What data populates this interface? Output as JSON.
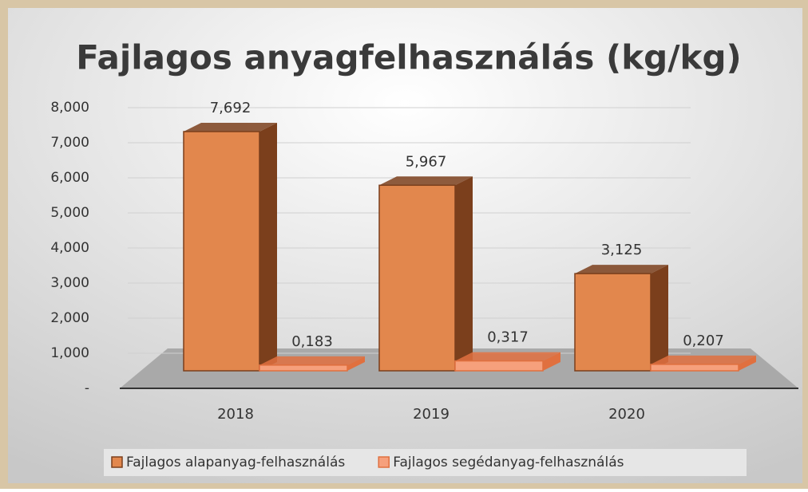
{
  "chart_data": {
    "type": "bar",
    "title": "Fajlagos anyagfelhasználás (kg/kg)",
    "categories": [
      "2018",
      "2019",
      "2020"
    ],
    "series": [
      {
        "name": "Fajlagos alapanyag-felhasználás",
        "color": "#e2874d",
        "values": [
          7.692,
          5.967,
          3.125
        ],
        "value_labels": [
          "7,692",
          "5,967",
          "3,125"
        ]
      },
      {
        "name": "Fajlagos segédanyag-felhasználás",
        "color": "#f6a07c",
        "values": [
          0.183,
          0.317,
          0.207
        ],
        "value_labels": [
          "0,183",
          "0,317",
          "0,207"
        ]
      }
    ],
    "ylim": [
      0,
      8
    ],
    "yticks": [
      {
        "value": 0,
        "label": "-"
      },
      {
        "value": 1,
        "label": "1,000"
      },
      {
        "value": 2,
        "label": "2,000"
      },
      {
        "value": 3,
        "label": "3,000"
      },
      {
        "value": 4,
        "label": "4,000"
      },
      {
        "value": 5,
        "label": "5,000"
      },
      {
        "value": 6,
        "label": "6,000"
      },
      {
        "value": 7,
        "label": "7,000"
      },
      {
        "value": 8,
        "label": "8,000"
      }
    ],
    "grid": true,
    "legend": "bottom"
  }
}
